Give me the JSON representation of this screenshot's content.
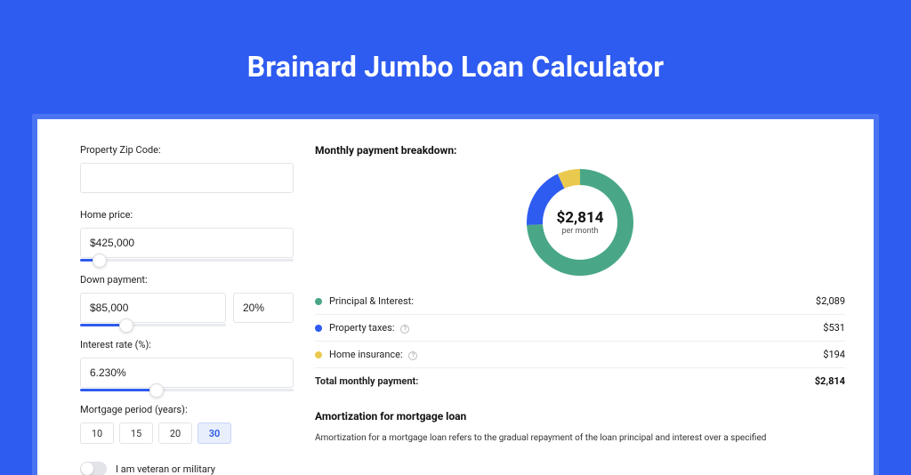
{
  "page": {
    "title": "Brainard Jumbo Loan Calculator",
    "background_color": "#2e5bf0",
    "card_margin_color": "#4a74f2",
    "card_color": "#ffffff"
  },
  "form": {
    "zip": {
      "label": "Property Zip Code:",
      "value": ""
    },
    "home_price": {
      "label": "Home price:",
      "value": "$425,000",
      "slider_pct": 9
    },
    "down_payment": {
      "label": "Down payment:",
      "value": "$85,000",
      "pct_value": "20%",
      "slider_pct": 32
    },
    "interest_rate": {
      "label": "Interest rate (%):",
      "value": "6.230%",
      "slider_pct": 36
    },
    "mortgage_period": {
      "label": "Mortgage period (years):",
      "options": [
        "10",
        "15",
        "20",
        "30"
      ],
      "active_index": 3
    },
    "veteran": {
      "label": "I am veteran or military",
      "on": false
    }
  },
  "breakdown": {
    "title": "Monthly payment breakdown:",
    "donut": {
      "center_amount": "$2,814",
      "center_sub": "per month",
      "thickness": 18,
      "segments": [
        {
          "name": "principal_interest",
          "color": "#49a788",
          "pct": 74.2
        },
        {
          "name": "property_taxes",
          "color": "#2e5bf0",
          "pct": 18.9
        },
        {
          "name": "home_insurance",
          "color": "#eac94f",
          "pct": 6.9
        }
      ]
    },
    "rows": [
      {
        "label": "Principal & Interest:",
        "value": "$2,089",
        "color": "#49a788",
        "info": false
      },
      {
        "label": "Property taxes:",
        "value": "$531",
        "color": "#2e5bf0",
        "info": true
      },
      {
        "label": "Home insurance:",
        "value": "$194",
        "color": "#eac94f",
        "info": true
      }
    ],
    "total": {
      "label": "Total monthly payment:",
      "value": "$2,814"
    }
  },
  "amortization": {
    "title": "Amortization for mortgage loan",
    "text": "Amortization for a mortgage loan refers to the gradual repayment of the loan principal and interest over a specified"
  }
}
